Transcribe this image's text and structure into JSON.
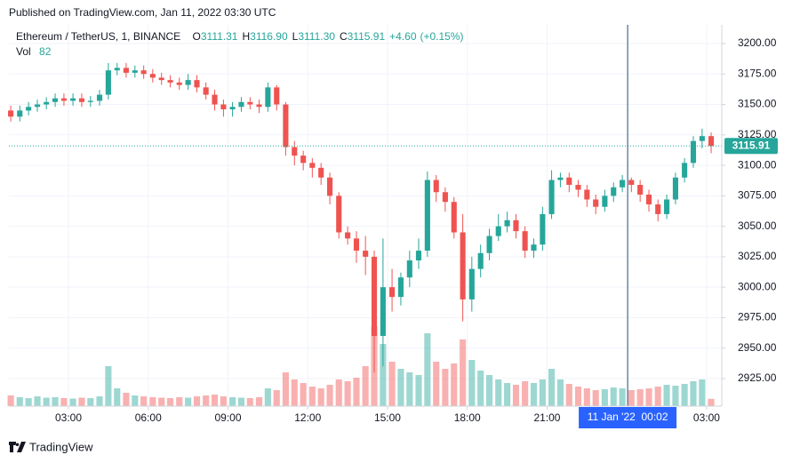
{
  "header": {
    "published": "Published on TradingView.com, Jan 11, 2022 03:30 UTC"
  },
  "chart_data": {
    "type": "candlestick",
    "symbol": "Ethereum / TetherUS, 1, BINANCE",
    "ohlc_legend": [
      {
        "label": "O",
        "value": "3111.31"
      },
      {
        "label": "H",
        "value": "3116.90"
      },
      {
        "label": "L",
        "value": "3111.30"
      },
      {
        "label": "C",
        "value": "3115.91"
      }
    ],
    "change": "+4.60",
    "change_pct": "(+0.15%)",
    "volume_label": "Vol",
    "x": [
      0.83,
      1.17,
      1.5,
      1.83,
      2.17,
      2.5,
      2.83,
      3.17,
      3.5,
      3.83,
      4.17,
      4.5,
      4.83,
      5.17,
      5.5,
      5.83,
      6.17,
      6.5,
      6.83,
      7.17,
      7.5,
      7.83,
      8.17,
      8.5,
      8.83,
      9.17,
      9.5,
      9.83,
      10.17,
      10.5,
      10.83,
      11.17,
      11.5,
      11.83,
      12.17,
      12.5,
      12.83,
      13.17,
      13.5,
      13.83,
      14.17,
      14.5,
      14.83,
      15.17,
      15.5,
      15.83,
      16.17,
      16.5,
      16.83,
      17.17,
      17.5,
      17.83,
      18.17,
      18.5,
      18.83,
      19.17,
      19.5,
      19.83,
      20.17,
      20.5,
      20.83,
      21.17,
      21.5,
      21.83,
      22.17,
      22.5,
      22.83,
      23.17,
      23.5,
      23.83,
      24.17,
      24.5,
      24.83,
      25.17,
      25.5,
      25.83,
      26.17,
      26.5,
      26.83,
      27.17
    ],
    "open": [
      3145,
      3140,
      3145,
      3148,
      3150,
      3152,
      3155,
      3153,
      3155,
      3152,
      3153,
      3158,
      3178,
      3180,
      3176,
      3178,
      3175,
      3172,
      3170,
      3168,
      3166,
      3170,
      3164,
      3158,
      3150,
      3146,
      3148,
      3152,
      3150,
      3148,
      3164,
      3150,
      3115,
      3108,
      3102,
      3098,
      3090,
      3075,
      3045,
      3040,
      3030,
      3025,
      2960,
      3000,
      2992,
      3008,
      3022,
      3030,
      3088,
      3078,
      3070,
      3045,
      2990,
      3015,
      3028,
      3042,
      3050,
      3055,
      3046,
      3030,
      3035,
      3060,
      3088,
      3090,
      3084,
      3080,
      3072,
      3066,
      3075,
      3082,
      3088,
      3084,
      3076,
      3068,
      3060,
      3072,
      3090,
      3102,
      3120,
      3124
    ],
    "high": [
      3149,
      3149,
      3152,
      3154,
      3156,
      3159,
      3159,
      3159,
      3159,
      3157,
      3162,
      3184,
      3184,
      3184,
      3182,
      3182,
      3179,
      3176,
      3174,
      3172,
      3175,
      3174,
      3168,
      3162,
      3154,
      3152,
      3156,
      3156,
      3154,
      3168,
      3166,
      3152,
      3120,
      3112,
      3106,
      3102,
      3094,
      3078,
      3050,
      3046,
      3042,
      3030,
      3040,
      3015,
      3012,
      3030,
      3040,
      3095,
      3092,
      3082,
      3074,
      3060,
      3025,
      3035,
      3048,
      3060,
      3062,
      3060,
      3050,
      3040,
      3066,
      3096,
      3094,
      3094,
      3088,
      3084,
      3076,
      3080,
      3086,
      3092,
      3090,
      3088,
      3080,
      3072,
      3076,
      3094,
      3106,
      3124,
      3130,
      3127
    ],
    "low": [
      3136,
      3136,
      3141,
      3144,
      3146,
      3148,
      3149,
      3149,
      3148,
      3148,
      3149,
      3154,
      3174,
      3172,
      3172,
      3171,
      3168,
      3166,
      3164,
      3162,
      3162,
      3160,
      3154,
      3145,
      3140,
      3140,
      3144,
      3146,
      3143,
      3144,
      3145,
      3108,
      3100,
      3096,
      3090,
      3084,
      3068,
      3040,
      3035,
      3020,
      3010,
      2930,
      2935,
      2980,
      2985,
      3000,
      3015,
      3025,
      3070,
      3062,
      3040,
      2972,
      2980,
      3008,
      3022,
      3038,
      3045,
      3040,
      3024,
      3024,
      3030,
      3056,
      3082,
      3078,
      3074,
      3066,
      3060,
      3062,
      3070,
      3078,
      3078,
      3070,
      3062,
      3054,
      3056,
      3068,
      3086,
      3098,
      3114,
      3110
    ],
    "close": [
      3140,
      3145,
      3148,
      3150,
      3152,
      3155,
      3153,
      3155,
      3152,
      3153,
      3158,
      3178,
      3180,
      3176,
      3178,
      3175,
      3172,
      3170,
      3168,
      3166,
      3170,
      3164,
      3158,
      3150,
      3146,
      3148,
      3152,
      3150,
      3148,
      3164,
      3150,
      3115,
      3108,
      3102,
      3098,
      3090,
      3075,
      3045,
      3040,
      3030,
      3025,
      2960,
      3000,
      2992,
      3008,
      3022,
      3030,
      3088,
      3078,
      3070,
      3045,
      2990,
      3015,
      3028,
      3042,
      3050,
      3055,
      3046,
      3030,
      3035,
      3060,
      3088,
      3090,
      3084,
      3080,
      3072,
      3066,
      3075,
      3082,
      3088,
      3084,
      3076,
      3068,
      3060,
      3072,
      3090,
      3102,
      3120,
      3124,
      3115.91
    ],
    "volume": [
      120,
      100,
      90,
      110,
      95,
      100,
      90,
      85,
      95,
      90,
      110,
      450,
      200,
      150,
      120,
      110,
      100,
      95,
      90,
      100,
      95,
      110,
      120,
      130,
      110,
      100,
      95,
      90,
      100,
      200,
      180,
      380,
      300,
      260,
      220,
      200,
      240,
      300,
      280,
      320,
      450,
      900,
      700,
      500,
      420,
      380,
      350,
      820,
      500,
      420,
      480,
      750,
      520,
      400,
      350,
      300,
      260,
      240,
      280,
      260,
      300,
      420,
      300,
      250,
      220,
      200,
      180,
      190,
      210,
      200,
      180,
      190,
      200,
      220,
      240,
      230,
      250,
      280,
      300,
      82
    ],
    "up_color": "#26a69a",
    "down_color": "#ef5350",
    "xlim": [
      0.76,
      27.57
    ],
    "xticks": [
      {
        "value": 3,
        "label": "03:00"
      },
      {
        "value": 6,
        "label": "06:00"
      },
      {
        "value": 9,
        "label": "09:00"
      },
      {
        "value": 12,
        "label": "12:00"
      },
      {
        "value": 15,
        "label": "15:00"
      },
      {
        "value": 18,
        "label": "18:00"
      },
      {
        "value": 21,
        "label": "21:00"
      },
      {
        "value": 27,
        "label": "03:00"
      }
    ],
    "ylim": [
      2902.4,
      3215.3
    ],
    "yticks": [
      {
        "value": 2925,
        "label": "2925.00"
      },
      {
        "value": 2950,
        "label": "2950.00"
      },
      {
        "value": 2975,
        "label": "2975.00"
      },
      {
        "value": 3000,
        "label": "3000.00"
      },
      {
        "value": 3025,
        "label": "3025.00"
      },
      {
        "value": 3050,
        "label": "3050.00"
      },
      {
        "value": 3075,
        "label": "3075.00"
      },
      {
        "value": 3100,
        "label": "3100.00"
      },
      {
        "value": 3125,
        "label": "3125.00"
      },
      {
        "value": 3150,
        "label": "3150.00"
      },
      {
        "value": 3175,
        "label": "3175.00"
      },
      {
        "value": 3200,
        "label": "3200.00"
      }
    ],
    "grid": true,
    "crosshair": {
      "x": 24.03,
      "label": "11 Jan '22  00:02"
    }
  },
  "footer": {
    "brand": "TradingView"
  }
}
